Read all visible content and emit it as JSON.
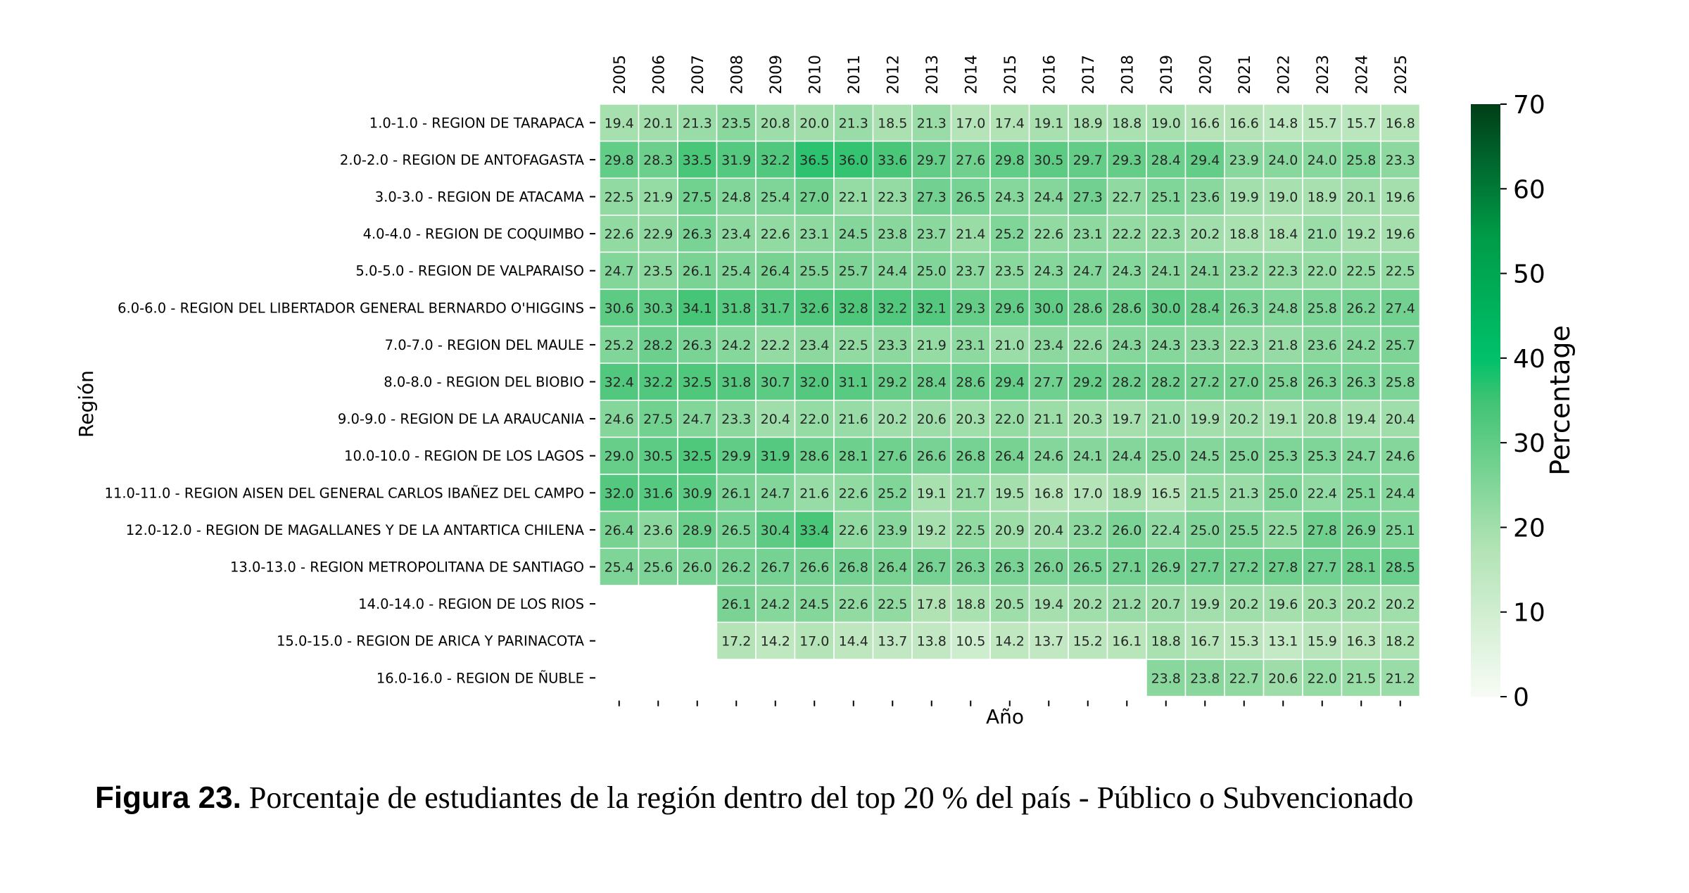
{
  "chart_data": {
    "type": "heatmap",
    "xlabel": "Año",
    "ylabel": "Región",
    "x": [
      "2005",
      "2006",
      "2007",
      "2008",
      "2009",
      "2010",
      "2011",
      "2012",
      "2013",
      "2014",
      "2015",
      "2016",
      "2017",
      "2018",
      "2019",
      "2020",
      "2021",
      "2022",
      "2023",
      "2024",
      "2025"
    ],
    "y": [
      "1.0-1.0 - REGION DE TARAPACA",
      "2.0-2.0 - REGION DE ANTOFAGASTA",
      "3.0-3.0 - REGION DE ATACAMA",
      "4.0-4.0 - REGION DE COQUIMBO",
      "5.0-5.0 - REGION DE VALPARAISO",
      "6.0-6.0 - REGION DEL LIBERTADOR GENERAL BERNARDO O'HIGGINS",
      "7.0-7.0 - REGION DEL MAULE",
      "8.0-8.0 - REGION DEL BIOBIO",
      "9.0-9.0 - REGION DE LA ARAUCANIA",
      "10.0-10.0 - REGION DE LOS LAGOS",
      "11.0-11.0 - REGION AISEN DEL GENERAL CARLOS IBAÑEZ DEL CAMPO",
      "12.0-12.0 - REGION DE MAGALLANES Y DE LA ANTARTICA CHILENA",
      "13.0-13.0 - REGION METROPOLITANA DE SANTIAGO",
      "14.0-14.0 - REGION DE LOS RIOS",
      "15.0-15.0 - REGION DE ARICA Y PARINACOTA",
      "16.0-16.0 - REGION DE ÑUBLE"
    ],
    "values": [
      [
        19.4,
        20.1,
        21.3,
        23.5,
        20.8,
        20.0,
        21.3,
        18.5,
        21.3,
        17.0,
        17.4,
        19.1,
        18.9,
        18.8,
        19.0,
        16.6,
        16.6,
        14.8,
        15.7,
        15.7,
        16.8
      ],
      [
        29.8,
        28.3,
        33.5,
        31.9,
        32.2,
        36.5,
        36.0,
        33.6,
        29.7,
        27.6,
        29.8,
        30.5,
        29.7,
        29.3,
        28.4,
        29.4,
        23.9,
        24.0,
        24.0,
        25.8,
        23.3
      ],
      [
        22.5,
        21.9,
        27.5,
        24.8,
        25.4,
        27.0,
        22.1,
        22.3,
        27.3,
        26.5,
        24.3,
        24.4,
        27.3,
        22.7,
        25.1,
        23.6,
        19.9,
        19.0,
        18.9,
        20.1,
        19.6
      ],
      [
        22.6,
        22.9,
        26.3,
        23.4,
        22.6,
        23.1,
        24.5,
        23.8,
        23.7,
        21.4,
        25.2,
        22.6,
        23.1,
        22.2,
        22.3,
        20.2,
        18.8,
        18.4,
        21.0,
        19.2,
        19.6
      ],
      [
        24.7,
        23.5,
        26.1,
        25.4,
        26.4,
        25.5,
        25.7,
        24.4,
        25.0,
        23.7,
        23.5,
        24.3,
        24.7,
        24.3,
        24.1,
        24.1,
        23.2,
        22.3,
        22.0,
        22.5,
        22.5
      ],
      [
        30.6,
        30.3,
        34.1,
        31.8,
        31.7,
        32.6,
        32.8,
        32.2,
        32.1,
        29.3,
        29.6,
        30.0,
        28.6,
        28.6,
        30.0,
        28.4,
        26.3,
        24.8,
        25.8,
        26.2,
        27.4
      ],
      [
        25.2,
        28.2,
        26.3,
        24.2,
        22.2,
        23.4,
        22.5,
        23.3,
        21.9,
        23.1,
        21.0,
        23.4,
        22.6,
        24.3,
        24.3,
        23.3,
        22.3,
        21.8,
        23.6,
        24.2,
        25.7
      ],
      [
        32.4,
        32.2,
        32.5,
        31.8,
        30.7,
        32.0,
        31.1,
        29.2,
        28.4,
        28.6,
        29.4,
        27.7,
        29.2,
        28.2,
        28.2,
        27.2,
        27.0,
        25.8,
        26.3,
        26.3,
        25.8
      ],
      [
        24.6,
        27.5,
        24.7,
        23.3,
        20.4,
        22.0,
        21.6,
        20.2,
        20.6,
        20.3,
        22.0,
        21.1,
        20.3,
        19.7,
        21.0,
        19.9,
        20.2,
        19.1,
        20.8,
        19.4,
        20.4
      ],
      [
        29.0,
        30.5,
        32.5,
        29.9,
        31.9,
        28.6,
        28.1,
        27.6,
        26.6,
        26.8,
        26.4,
        24.6,
        24.1,
        24.4,
        25.0,
        24.5,
        25.0,
        25.3,
        25.3,
        24.7,
        24.6
      ],
      [
        32.0,
        31.6,
        30.9,
        26.1,
        24.7,
        21.6,
        22.6,
        25.2,
        19.1,
        21.7,
        19.5,
        16.8,
        17.0,
        18.9,
        16.5,
        21.5,
        21.3,
        25.0,
        22.4,
        25.1,
        24.4
      ],
      [
        26.4,
        23.6,
        28.9,
        26.5,
        30.4,
        33.4,
        22.6,
        23.9,
        19.2,
        22.5,
        20.9,
        20.4,
        23.2,
        26.0,
        22.4,
        25.0,
        25.5,
        22.5,
        27.8,
        26.9,
        25.1
      ],
      [
        25.4,
        25.6,
        26.0,
        26.2,
        26.7,
        26.6,
        26.8,
        26.4,
        26.7,
        26.3,
        26.3,
        26.0,
        26.5,
        27.1,
        26.9,
        27.7,
        27.2,
        27.8,
        27.7,
        28.1,
        28.5
      ],
      [
        null,
        null,
        null,
        26.1,
        24.2,
        24.5,
        22.6,
        22.5,
        17.8,
        18.8,
        20.5,
        19.4,
        20.2,
        21.2,
        20.7,
        19.9,
        20.2,
        19.6,
        20.3,
        20.2,
        20.2
      ],
      [
        null,
        null,
        null,
        17.2,
        14.2,
        17.0,
        14.4,
        13.7,
        13.8,
        10.5,
        14.2,
        13.7,
        15.2,
        16.1,
        18.8,
        16.7,
        15.3,
        13.1,
        15.9,
        16.3,
        18.2
      ],
      [
        null,
        null,
        null,
        null,
        null,
        null,
        null,
        null,
        null,
        null,
        null,
        null,
        null,
        null,
        23.8,
        23.8,
        22.7,
        20.6,
        22.0,
        21.5,
        21.2
      ]
    ],
    "colorbar": {
      "label": "Percentage",
      "range": [
        0,
        70
      ],
      "ticks": [
        0,
        10,
        20,
        30,
        40,
        50,
        60,
        70
      ],
      "colormap": [
        "#f7fcf5",
        "#00c16a",
        "#003e18"
      ]
    },
    "x_tick_position": "top",
    "grid": false,
    "legend": "colorbar-right"
  },
  "caption": {
    "label": "Figura 23.",
    "text": " Porcentaje de estudiantes de la región dentro del top 20 % del país - Público o Subvencionado"
  }
}
